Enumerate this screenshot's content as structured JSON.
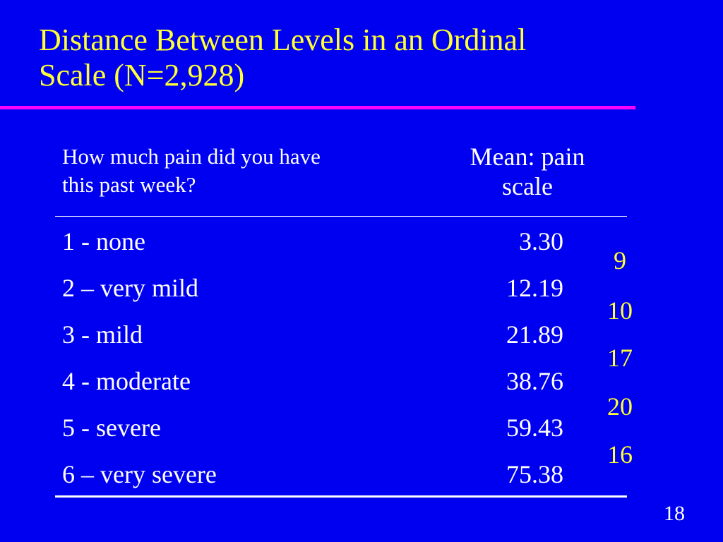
{
  "slide": {
    "title_line1": "Distance Between Levels in an Ordinal",
    "title_line2": "Scale (N=2,928)",
    "page_number": "18"
  },
  "table": {
    "question_header_line1": "How much pain did you have",
    "question_header_line2": "this past week?",
    "mean_header_line1": "Mean: pain",
    "mean_header_line2": "scale",
    "rows": [
      {
        "label": "1 - none",
        "mean": "3.30"
      },
      {
        "label": "2 – very mild",
        "mean": "12.19"
      },
      {
        "label": "3 - mild",
        "mean": "21.89"
      },
      {
        "label": "4 - moderate",
        "mean": "38.76"
      },
      {
        "label": "5 - severe",
        "mean": "59.43"
      },
      {
        "label": "6 – very severe",
        "mean": "75.38"
      }
    ],
    "differences": [
      "9",
      "10",
      "17",
      "20",
      "16"
    ]
  },
  "colors": {
    "background": "#0000f0",
    "title": "#ffff33",
    "rule": "#ff00ff",
    "text": "#ffffff",
    "differences": "#ffff33"
  }
}
